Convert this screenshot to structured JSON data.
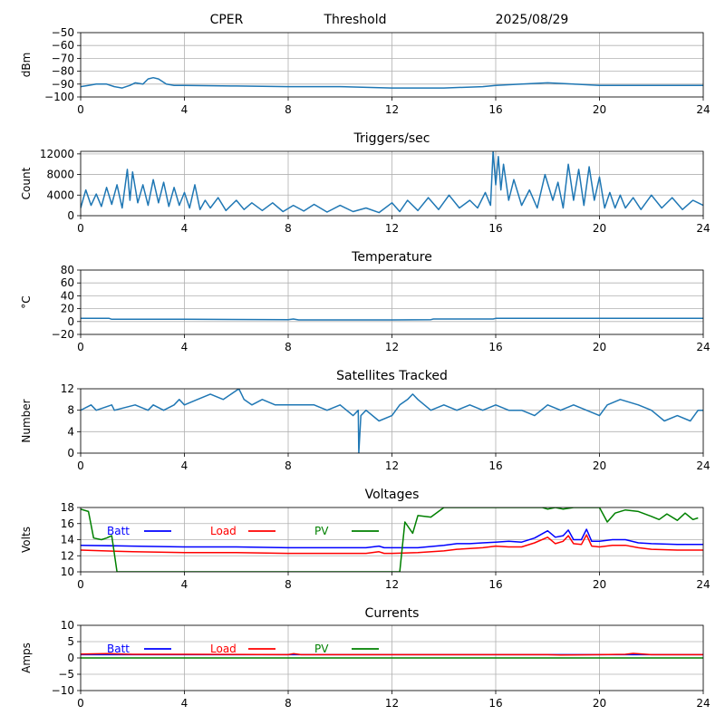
{
  "header": {
    "station": "CPER",
    "mode": "Threshold",
    "date": "2025/08/29"
  },
  "colors": {
    "series_default": "#1f77b4",
    "batt": "#0000ff",
    "load": "#ff0000",
    "pv": "#008000",
    "grid": "#b0b0b0"
  },
  "chart_data": [
    {
      "type": "line",
      "title": "",
      "ylabel": "dBm",
      "xlim": [
        0,
        24
      ],
      "ylim": [
        -100,
        -50
      ],
      "xticks": [
        0,
        4,
        8,
        12,
        16,
        20,
        24
      ],
      "yticks": [
        -100,
        -90,
        -80,
        -70,
        -60,
        -50
      ],
      "ytick_labels": [
        "−100",
        "−90",
        "−80",
        "−70",
        "−60",
        "−50"
      ],
      "series": [
        {
          "color": "#1f77b4",
          "x": [
            0,
            0.3,
            0.6,
            1.0,
            1.3,
            1.6,
            1.9,
            2.1,
            2.4,
            2.6,
            2.8,
            3.0,
            3.3,
            3.6,
            4,
            6,
            8,
            10,
            12,
            14,
            15.5,
            16,
            17,
            18,
            19,
            20,
            22,
            24
          ],
          "y": [
            -92,
            -91,
            -90,
            -90,
            -92,
            -93,
            -91,
            -89,
            -90,
            -86,
            -85,
            -86,
            -90,
            -91,
            -91,
            -91.5,
            -92,
            -92,
            -93,
            -93,
            -92,
            -91,
            -90,
            -89,
            -90,
            -91,
            -91,
            -91
          ]
        }
      ]
    },
    {
      "type": "line",
      "title": "Triggers/sec",
      "ylabel": "Count",
      "xlim": [
        0,
        24
      ],
      "ylim": [
        0,
        12500
      ],
      "xticks": [
        0,
        4,
        8,
        12,
        16,
        20,
        24
      ],
      "yticks": [
        0,
        4000,
        8000,
        12000
      ],
      "ytick_labels": [
        "0",
        "4000",
        "8000",
        "12000"
      ],
      "series": [
        {
          "color": "#1f77b4",
          "x": [
            0,
            0.2,
            0.4,
            0.6,
            0.8,
            1.0,
            1.2,
            1.4,
            1.6,
            1.8,
            1.9,
            2.0,
            2.2,
            2.4,
            2.6,
            2.8,
            3.0,
            3.2,
            3.4,
            3.6,
            3.8,
            4.0,
            4.2,
            4.4,
            4.6,
            4.8,
            5.0,
            5.3,
            5.6,
            6.0,
            6.3,
            6.6,
            7.0,
            7.4,
            7.8,
            8.2,
            8.6,
            9.0,
            9.5,
            10.0,
            10.5,
            11.0,
            11.5,
            12.0,
            12.3,
            12.6,
            13.0,
            13.4,
            13.8,
            14.2,
            14.6,
            15.0,
            15.3,
            15.6,
            15.8,
            15.9,
            16.0,
            16.1,
            16.2,
            16.3,
            16.5,
            16.7,
            17.0,
            17.3,
            17.6,
            17.9,
            18.2,
            18.4,
            18.6,
            18.8,
            19.0,
            19.2,
            19.4,
            19.6,
            19.8,
            20.0,
            20.2,
            20.4,
            20.6,
            20.8,
            21.0,
            21.3,
            21.6,
            22.0,
            22.4,
            22.8,
            23.2,
            23.6,
            24.0
          ],
          "y": [
            1500,
            5000,
            2000,
            4200,
            1800,
            5500,
            2200,
            6000,
            1500,
            9000,
            3000,
            8500,
            2500,
            6000,
            2000,
            7000,
            2500,
            6500,
            1800,
            5500,
            2000,
            4500,
            1500,
            6000,
            1200,
            3000,
            1500,
            3500,
            1000,
            3000,
            1200,
            2500,
            1000,
            2500,
            800,
            2000,
            900,
            2200,
            700,
            2000,
            800,
            1500,
            600,
            2500,
            800,
            3000,
            1000,
            3500,
            1200,
            4000,
            1500,
            3000,
            1500,
            4500,
            2000,
            12500,
            6000,
            11500,
            5000,
            10000,
            3000,
            7000,
            2000,
            5000,
            1500,
            8000,
            3000,
            6500,
            1500,
            10000,
            3000,
            9000,
            2000,
            9500,
            3000,
            7500,
            1500,
            4500,
            1500,
            4000,
            1500,
            3500,
            1200,
            4000,
            1500,
            3500,
            1200,
            3000,
            2000
          ]
        }
      ]
    },
    {
      "type": "line",
      "title": "Temperature",
      "ylabel": "°C",
      "xlim": [
        0,
        24
      ],
      "ylim": [
        -20,
        80
      ],
      "xticks": [
        0,
        4,
        8,
        12,
        16,
        20,
        24
      ],
      "yticks": [
        -20,
        0,
        20,
        40,
        60,
        80
      ],
      "ytick_labels": [
        "−20",
        "0",
        "20",
        "40",
        "60",
        "80"
      ],
      "series": [
        {
          "color": "#1f77b4",
          "x": [
            0,
            1.1,
            1.2,
            4,
            8,
            8.2,
            8.4,
            9,
            12,
            13.5,
            13.6,
            15.9,
            16,
            20,
            24
          ],
          "y": [
            5,
            5,
            3.5,
            3.5,
            3,
            4,
            2.5,
            2.5,
            2.5,
            3,
            4,
            4,
            5,
            5,
            5
          ]
        }
      ]
    },
    {
      "type": "line",
      "title": "Satellites Tracked",
      "ylabel": "Number",
      "xlim": [
        0,
        24
      ],
      "ylim": [
        0,
        12
      ],
      "xticks": [
        0,
        4,
        8,
        12,
        16,
        20,
        24
      ],
      "yticks": [
        0,
        4,
        8,
        12
      ],
      "ytick_labels": [
        "0",
        "4",
        "8",
        "12"
      ],
      "series": [
        {
          "color": "#1f77b4",
          "x": [
            0,
            0.4,
            0.6,
            1.2,
            1.3,
            2.1,
            2.6,
            2.8,
            3.2,
            3.6,
            3.8,
            4.0,
            4.5,
            5.0,
            5.5,
            6.1,
            6.2,
            6.3,
            6.6,
            7.0,
            7.5,
            8.0,
            9.0,
            9.5,
            10.0,
            10.5,
            10.7,
            10.72,
            10.8,
            11.0,
            11.5,
            12.0,
            12.3,
            12.6,
            12.8,
            13.0,
            13.5,
            14.0,
            14.5,
            15.0,
            15.5,
            16.0,
            16.5,
            17.0,
            17.5,
            18.0,
            18.5,
            19.0,
            19.5,
            20.0,
            20.3,
            20.8,
            21.5,
            22.0,
            22.5,
            23.0,
            23.5,
            23.8,
            24.0
          ],
          "y": [
            8,
            9,
            8,
            9,
            8,
            9,
            8,
            9,
            8,
            9,
            10,
            9,
            10,
            11,
            10,
            12,
            11,
            10,
            9,
            10,
            9,
            9,
            9,
            8,
            9,
            7,
            8,
            0,
            7,
            8,
            6,
            7,
            9,
            10,
            11,
            10,
            8,
            9,
            8,
            9,
            8,
            9,
            8,
            8,
            7,
            9,
            8,
            9,
            8,
            7,
            9,
            10,
            9,
            8,
            6,
            7,
            6,
            8,
            8
          ]
        }
      ]
    },
    {
      "type": "line",
      "title": "Voltages",
      "ylabel": "Volts",
      "xlim": [
        0,
        24
      ],
      "ylim": [
        10,
        18
      ],
      "xticks": [
        0,
        4,
        8,
        12,
        16,
        20,
        24
      ],
      "yticks": [
        10,
        12,
        14,
        16,
        18
      ],
      "ytick_labels": [
        "10",
        "12",
        "14",
        "16",
        "18"
      ],
      "legend": [
        "Batt",
        "Load",
        "PV"
      ],
      "series": [
        {
          "name": "Batt",
          "color": "#0000ff",
          "x": [
            0,
            2,
            4,
            6,
            8,
            10,
            11,
            11.5,
            11.7,
            12,
            13,
            14,
            14.5,
            15,
            15.5,
            16,
            16.5,
            17,
            17.5,
            18,
            18.3,
            18.6,
            18.8,
            19,
            19.3,
            19.5,
            19.7,
            20,
            20.5,
            21,
            21.5,
            22,
            23,
            24
          ],
          "y": [
            13.3,
            13.2,
            13.1,
            13.1,
            13.0,
            13.0,
            13.0,
            13.2,
            13.0,
            13.0,
            13.0,
            13.3,
            13.5,
            13.5,
            13.6,
            13.7,
            13.8,
            13.7,
            14.2,
            15.1,
            14.3,
            14.5,
            15.2,
            14.0,
            14.0,
            15.3,
            13.8,
            13.8,
            14.0,
            14.0,
            13.6,
            13.5,
            13.4,
            13.4
          ]
        },
        {
          "name": "Load",
          "color": "#ff0000",
          "x": [
            0,
            2,
            4,
            6,
            8,
            10,
            11,
            11.5,
            11.7,
            12,
            13,
            14,
            14.5,
            15,
            15.5,
            16,
            16.5,
            17,
            17.5,
            18,
            18.3,
            18.6,
            18.8,
            19,
            19.3,
            19.5,
            19.7,
            20,
            20.5,
            21,
            21.5,
            22,
            23,
            24
          ],
          "y": [
            12.7,
            12.5,
            12.4,
            12.4,
            12.3,
            12.3,
            12.3,
            12.5,
            12.3,
            12.3,
            12.4,
            12.6,
            12.8,
            12.9,
            13.0,
            13.2,
            13.1,
            13.1,
            13.6,
            14.3,
            13.5,
            13.8,
            14.5,
            13.5,
            13.4,
            14.6,
            13.2,
            13.1,
            13.3,
            13.3,
            13.0,
            12.8,
            12.7,
            12.7
          ]
        },
        {
          "name": "PV",
          "color": "#008000",
          "x": [
            0,
            0.3,
            0.5,
            0.8,
            1.0,
            1.2,
            1.4,
            12.3,
            12.5,
            12.8,
            13.0,
            13.5,
            14.0,
            16.0,
            17.8,
            18.0,
            18.3,
            18.6,
            19.0,
            20.0,
            20.3,
            20.6,
            21.0,
            21.5,
            22.0,
            22.3,
            22.6,
            23.0,
            23.3,
            23.6,
            23.8
          ],
          "y": [
            17.8,
            17.5,
            14.2,
            14.0,
            14.2,
            14.5,
            10.0,
            10.0,
            16.2,
            14.8,
            17.0,
            16.8,
            18.0,
            18.0,
            18.0,
            17.8,
            18.0,
            17.8,
            18.0,
            18.0,
            16.2,
            17.3,
            17.7,
            17.5,
            16.9,
            16.5,
            17.2,
            16.4,
            17.3,
            16.5,
            16.7
          ]
        }
      ]
    },
    {
      "type": "line",
      "title": "Currents",
      "ylabel": "Amps",
      "xlim": [
        0,
        24
      ],
      "ylim": [
        -10,
        10
      ],
      "xticks": [
        0,
        4,
        8,
        12,
        16,
        20,
        24
      ],
      "yticks": [
        -10,
        -5,
        0,
        5,
        10
      ],
      "ytick_labels": [
        "−10",
        "−5",
        "0",
        "5",
        "10"
      ],
      "legend": [
        "Batt",
        "Load",
        "PV"
      ],
      "series": [
        {
          "name": "Batt",
          "color": "#0000ff",
          "x": [
            0,
            24
          ],
          "y": [
            1.0,
            1.0
          ]
        },
        {
          "name": "Load",
          "color": "#ff0000",
          "x": [
            0,
            1,
            2,
            4,
            8,
            8.2,
            8.5,
            12,
            16,
            18,
            18.5,
            20,
            21,
            21.3,
            22,
            24
          ],
          "y": [
            1.2,
            1.3,
            1.1,
            1.1,
            1.0,
            1.3,
            1.0,
            1.0,
            1.0,
            1.0,
            0.9,
            1.0,
            1.1,
            1.4,
            1.0,
            1.0
          ]
        },
        {
          "name": "PV",
          "color": "#008000",
          "x": [
            0,
            24
          ],
          "y": [
            0.0,
            0.0
          ]
        }
      ]
    }
  ]
}
